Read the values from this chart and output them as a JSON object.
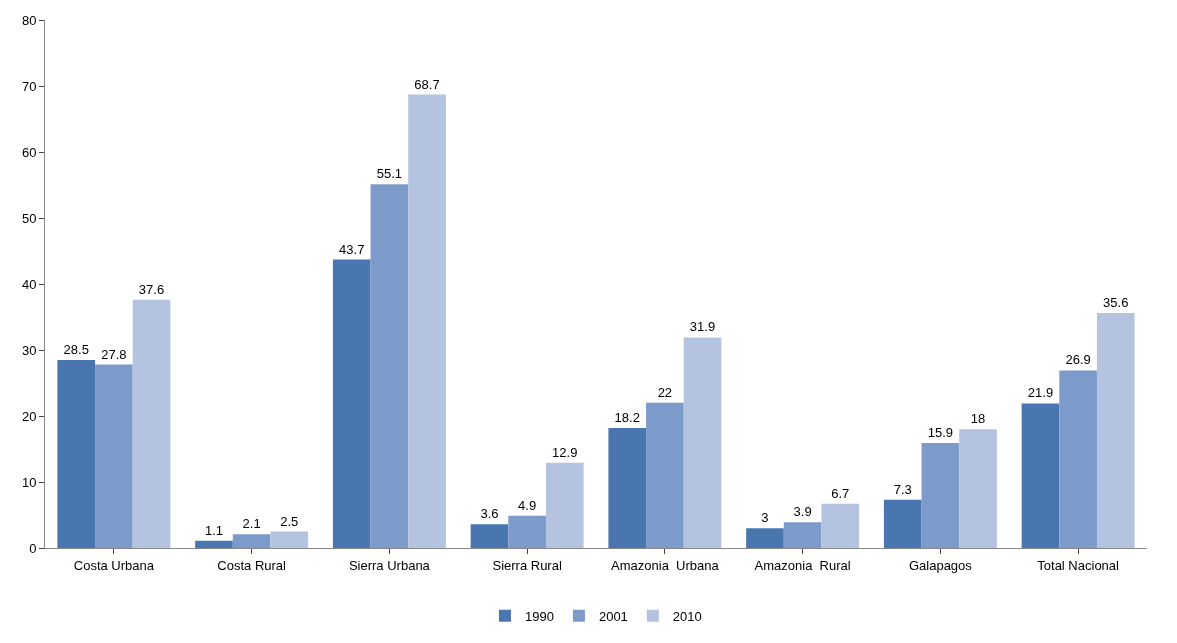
{
  "chart_data": {
    "type": "bar",
    "categories": [
      "Costa Urbana",
      "Costa Rural",
      "Sierra Urbana",
      "Sierra Rural",
      "Amazonia  Urbana",
      "Amazonia  Rural",
      "Galapagos",
      "Total Nacional"
    ],
    "series": [
      {
        "name": "1990",
        "color": "#4a76b0",
        "values": [
          28.5,
          1.1,
          43.7,
          3.6,
          18.2,
          3,
          7.3,
          21.9
        ]
      },
      {
        "name": "2001",
        "color": "#7d9bca",
        "values": [
          27.8,
          2.1,
          55.1,
          4.9,
          22,
          3.9,
          15.9,
          26.9
        ]
      },
      {
        "name": "2010",
        "color": "#b4c3df",
        "values": [
          37.6,
          2.5,
          68.7,
          12.9,
          31.9,
          6.7,
          18,
          35.6
        ]
      }
    ],
    "ylim": [
      0,
      80
    ],
    "yticks": [
      0,
      10,
      20,
      30,
      40,
      50,
      60,
      70,
      80
    ],
    "data_labels": true,
    "legend": "bottom"
  }
}
